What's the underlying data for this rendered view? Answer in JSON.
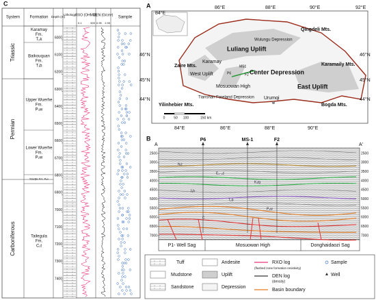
{
  "panel_c": {
    "label": "C",
    "headers": [
      "System",
      "Formation",
      "Depth (m)",
      "Lithology",
      "RXO (OHMM)",
      "DEN (G/cm³)",
      "Sample"
    ],
    "rxo_scale": [
      "0.1",
      "500"
    ],
    "den_scale": [
      "0.95",
      "2.95"
    ],
    "systems": [
      "Triassic",
      "Permian",
      "Carboniferous"
    ],
    "formations": [
      "Karamay Fm. T₂k",
      "Baikouquan Fm. T₁b",
      "Upper Wuerhe Fm. P₃w",
      "Lower Wuerhe Fm. P₂w",
      "Xiazijie Fm. P₂x",
      "Tailegula Fm. C₁t"
    ],
    "depths": [
      6000,
      6100,
      6200,
      6300,
      6400,
      6500,
      6600,
      6700,
      6800,
      6900,
      7000,
      7100,
      7200,
      7300,
      7400
    ]
  },
  "panel_a": {
    "label": "A",
    "lon_top": [
      "84°E",
      "86°E",
      "88°E",
      "90°E",
      "92°E"
    ],
    "lon_bottom": [
      "84°E",
      "86°E",
      "88°E",
      "90°E"
    ],
    "lat": [
      "46°N",
      "45°N",
      "44°N"
    ],
    "places": {
      "qingdeli": "Qingdeli Mts.",
      "wulungu": "Wulungu Depression",
      "luliang": "Luliang Uplift",
      "zaire": "Zaire Mts.",
      "karamay": "Karamay",
      "west": "West Uplift",
      "mosuowan": "Mosuowan High",
      "center": "Center Depression",
      "karamaily": "Karamaily Mts.",
      "tianshan": "Tianshan Foreland Depression",
      "urumqi": "Urumqi",
      "east": "East Uplift",
      "yilinhebier": "Yilinhebier Mts.",
      "bogda": "Bogda Mts.",
      "p6": "P6",
      "ms1": "MS1",
      "f2": "F2"
    },
    "scale": [
      "0",
      "50",
      "100",
      "150 km"
    ]
  },
  "panel_b": {
    "label": "B",
    "ends": [
      "A",
      "A'"
    ],
    "wells": [
      "P6",
      "MS-1",
      "F2"
    ],
    "depth_ticks": [
      2500,
      3000,
      3500,
      4000,
      4500,
      5000,
      5500,
      6000,
      6500,
      7000
    ],
    "regions": [
      "P1- Well Sag",
      "Mosuowan High",
      "Donghaidaozi Sag"
    ],
    "horizons": [
      "N₁t",
      "E₁₋₂z",
      "K₁tg",
      "J₁b",
      "T₁b",
      "P₂w",
      "C"
    ]
  },
  "legend": {
    "tuff": "Tuff",
    "mudstone": "Mudstone",
    "sandstone": "Sandstone",
    "andesite": "Andesite",
    "uplift": "Uplift",
    "depression": "Depression",
    "rxo": "RXO log",
    "rxo_note": "(flushed zone formation resistivity)",
    "den": "DEN log",
    "den_note": "(density)",
    "sample": "Sample",
    "well": "Well",
    "boundary": "Basin boundary"
  }
}
